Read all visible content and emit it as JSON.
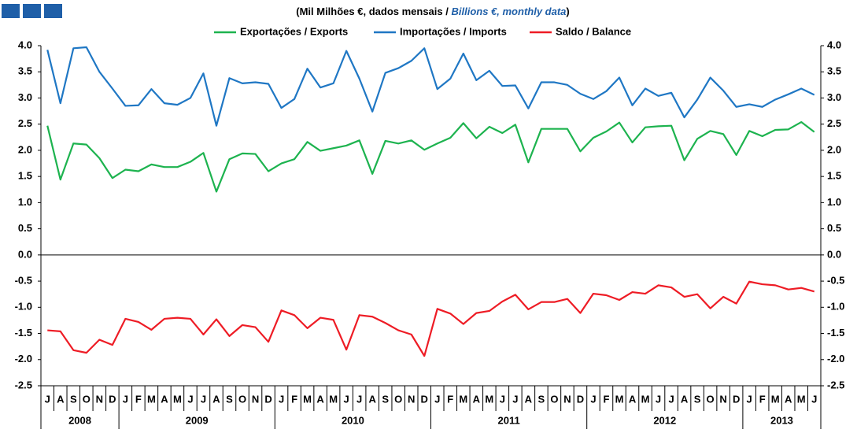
{
  "chart_data": {
    "type": "line",
    "subtitle": [
      "(Mil Milhões €, dados mensais /",
      "Billions €, monthly data",
      ")"
    ],
    "categories": [
      "J",
      "A",
      "S",
      "O",
      "N",
      "D",
      "J",
      "F",
      "M",
      "A",
      "M",
      "J",
      "J",
      "A",
      "S",
      "O",
      "N",
      "D",
      "J",
      "F",
      "M",
      "A",
      "M",
      "J",
      "J",
      "A",
      "S",
      "O",
      "N",
      "D",
      "J",
      "F",
      "M",
      "A",
      "M",
      "J",
      "J",
      "A",
      "S",
      "O",
      "N",
      "D",
      "J",
      "F",
      "M",
      "A",
      "M",
      "J",
      "J",
      "A",
      "S",
      "O",
      "N",
      "D",
      "J",
      "F",
      "M",
      "A",
      "M",
      "J"
    ],
    "years": [
      "2008",
      "2009",
      "2010",
      "2011",
      "2012",
      "2013"
    ],
    "series": [
      {
        "name": "Exportações / Exports",
        "color": "#1db34f",
        "values": [
          2.47,
          1.44,
          2.13,
          2.11,
          1.85,
          1.47,
          1.63,
          1.6,
          1.73,
          1.68,
          1.68,
          1.78,
          1.95,
          1.21,
          1.83,
          1.94,
          1.93,
          1.6,
          1.75,
          1.83,
          2.16,
          1.99,
          2.04,
          2.09,
          2.19,
          1.55,
          2.18,
          2.13,
          2.19,
          2.01,
          2.13,
          2.24,
          2.52,
          2.23,
          2.45,
          2.33,
          2.49,
          1.77,
          2.41,
          2.41,
          2.41,
          1.98,
          2.24,
          2.36,
          2.53,
          2.15,
          2.44,
          2.46,
          2.47,
          1.81,
          2.22,
          2.37,
          2.31,
          1.91,
          2.37,
          2.27,
          2.39,
          2.4,
          2.54,
          2.35
        ]
      },
      {
        "name": "Importações / Imports",
        "color": "#1f77c4",
        "values": [
          3.92,
          2.9,
          3.95,
          3.97,
          3.5,
          3.18,
          2.85,
          2.86,
          3.17,
          2.9,
          2.87,
          3.0,
          3.47,
          2.47,
          3.38,
          3.28,
          3.3,
          3.27,
          2.81,
          2.98,
          3.56,
          3.2,
          3.28,
          3.9,
          3.37,
          2.74,
          3.48,
          3.57,
          3.71,
          3.95,
          3.17,
          3.37,
          3.85,
          3.34,
          3.52,
          3.23,
          3.24,
          2.8,
          3.3,
          3.3,
          3.25,
          3.08,
          2.98,
          3.13,
          3.39,
          2.86,
          3.18,
          3.04,
          3.1,
          2.63,
          2.97,
          3.39,
          3.14,
          2.83,
          2.88,
          2.83,
          2.97,
          3.07,
          3.18,
          3.06
        ]
      },
      {
        "name": "Saldo / Balance",
        "color": "#ee1c25",
        "values": [
          -1.44,
          -1.46,
          -1.82,
          -1.87,
          -1.62,
          -1.72,
          -1.22,
          -1.28,
          -1.43,
          -1.22,
          -1.2,
          -1.22,
          -1.52,
          -1.23,
          -1.55,
          -1.34,
          -1.38,
          -1.66,
          -1.06,
          -1.15,
          -1.4,
          -1.2,
          -1.24,
          -1.81,
          -1.15,
          -1.18,
          -1.3,
          -1.44,
          -1.52,
          -1.93,
          -1.03,
          -1.12,
          -1.32,
          -1.11,
          -1.07,
          -0.89,
          -0.76,
          -1.04,
          -0.9,
          -0.9,
          -0.84,
          -1.11,
          -0.74,
          -0.77,
          -0.86,
          -0.71,
          -0.74,
          -0.58,
          -0.62,
          -0.8,
          -0.75,
          -1.02,
          -0.8,
          -0.93,
          -0.51,
          -0.56,
          -0.58,
          -0.66,
          -0.63,
          -0.7
        ]
      }
    ],
    "ylim": [
      -2.5,
      4
    ],
    "yticks": [
      {
        "value": 4,
        "label": "4.0"
      },
      3.5,
      {
        "value": 3,
        "label": "3.0"
      },
      2.5,
      {
        "value": 2,
        "label": "2.0"
      },
      1.5,
      {
        "value": 1,
        "label": "1.0"
      },
      0.5,
      {
        "value": 0,
        "label": "0.0"
      },
      -0.5,
      {
        "value": -1,
        "label": "-1.0"
      },
      -1.5,
      {
        "value": -2,
        "label": "-2.0"
      },
      -2.5
    ],
    "grid": false
  }
}
